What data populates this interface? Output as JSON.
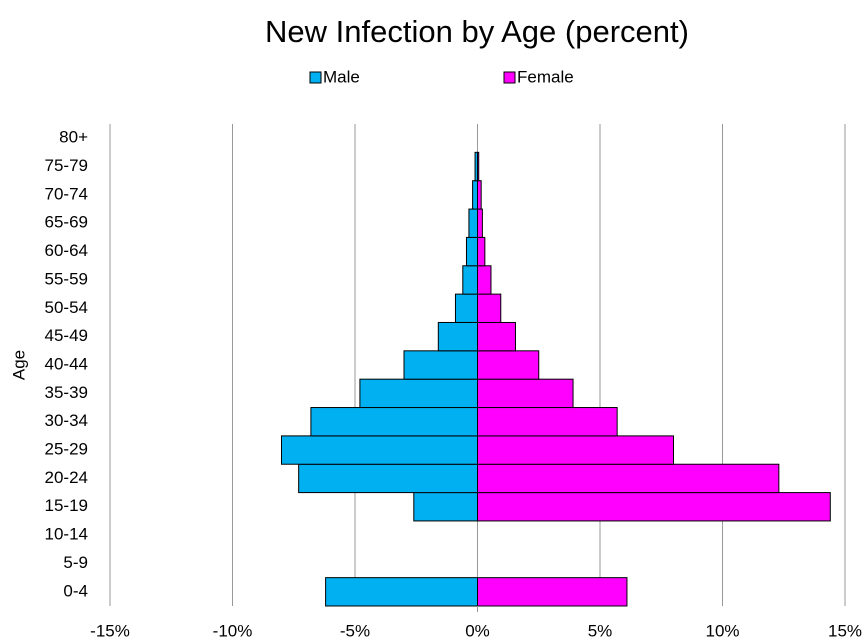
{
  "chart_data": {
    "type": "bar",
    "orientation": "horizontal",
    "title": "New Infection by Age (percent)",
    "y_label": "Age",
    "categories": [
      "0-4",
      "5-9",
      "10-14",
      "15-19",
      "20-24",
      "25-29",
      "30-34",
      "35-39",
      "40-44",
      "45-49",
      "50-54",
      "55-59",
      "60-64",
      "65-69",
      "70-74",
      "75-79",
      "80+"
    ],
    "series": [
      {
        "name": "Male",
        "color": "#00b0f0",
        "values": [
          -6.2,
          0,
          0,
          -2.6,
          -7.3,
          -8.0,
          -6.8,
          -4.8,
          -3.0,
          -1.6,
          -0.9,
          -0.6,
          -0.45,
          -0.35,
          -0.2,
          -0.1,
          0
        ]
      },
      {
        "name": "Female",
        "color": "#ff00ff",
        "values": [
          6.1,
          0,
          0,
          14.4,
          12.3,
          8.0,
          5.7,
          3.9,
          2.5,
          1.55,
          0.95,
          0.55,
          0.3,
          0.2,
          0.15,
          0.05,
          0
        ]
      }
    ],
    "xlim": [
      -15,
      15
    ],
    "xticks": [
      {
        "value": -15,
        "label": "-15%"
      },
      {
        "value": -10,
        "label": "-10%"
      },
      {
        "value": -5,
        "label": "-5%"
      },
      {
        "value": 0,
        "label": "0%"
      },
      {
        "value": 5,
        "label": "5%"
      },
      {
        "value": 10,
        "label": "10%"
      },
      {
        "value": 15,
        "label": "15%"
      }
    ],
    "grid": true,
    "legend": "top"
  }
}
